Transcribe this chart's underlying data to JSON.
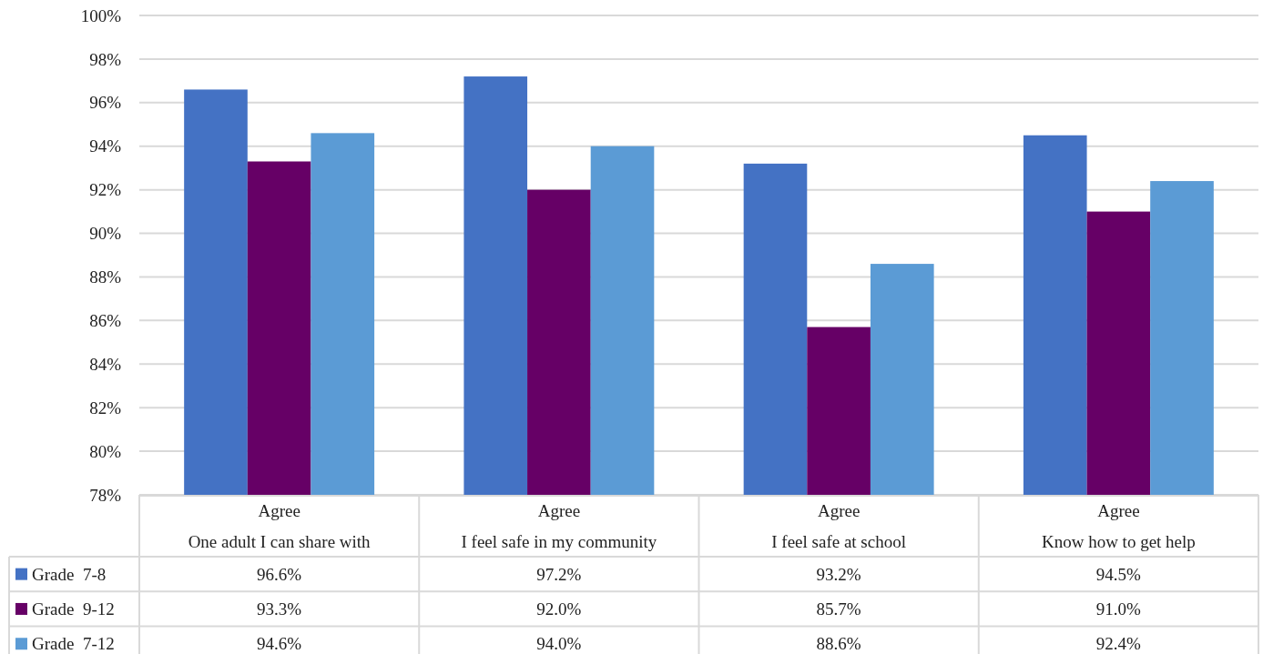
{
  "chart_data": {
    "type": "bar",
    "categories": [
      "Agree\nOne adult I can share with",
      "Agree\nI feel safe in my community",
      "Agree\nI feel safe at school",
      "Agree\nKnow how to get help"
    ],
    "series": [
      {
        "name": "Grade  7-8",
        "color": "#4472c4",
        "values": [
          96.6,
          97.2,
          93.2,
          94.5
        ],
        "value_labels": [
          "96.6%",
          "97.2%",
          "93.2%",
          "94.5%"
        ]
      },
      {
        "name": "Grade  9-12",
        "color": "#660066",
        "values": [
          93.3,
          92.0,
          85.7,
          91.0
        ],
        "value_labels": [
          "93.3%",
          "92.0%",
          "85.7%",
          "91.0%"
        ]
      },
      {
        "name": "Grade  7-12",
        "color": "#5b9bd5",
        "values": [
          94.6,
          94.0,
          88.6,
          92.4
        ],
        "value_labels": [
          "94.6%",
          "94.0%",
          "88.6%",
          "92.4%"
        ]
      }
    ],
    "ylim": [
      78,
      100
    ],
    "yticks": [
      {
        "value": 78,
        "label": "78%"
      },
      {
        "value": 80,
        "label": "80%"
      },
      {
        "value": 82,
        "label": "82%"
      },
      {
        "value": 84,
        "label": "84%"
      },
      {
        "value": 86,
        "label": "86%"
      },
      {
        "value": 88,
        "label": "88%"
      },
      {
        "value": 90,
        "label": "90%"
      },
      {
        "value": 92,
        "label": "92%"
      },
      {
        "value": 94,
        "label": "94%"
      },
      {
        "value": 96,
        "label": "96%"
      },
      {
        "value": 98,
        "label": "98%"
      },
      {
        "value": 100,
        "label": "100%"
      }
    ],
    "grid": "y",
    "legend": "bottom"
  }
}
